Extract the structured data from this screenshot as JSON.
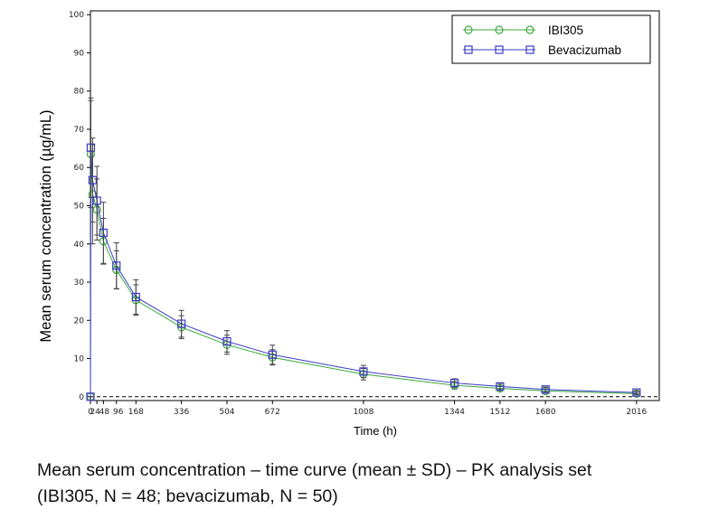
{
  "chart_data": {
    "type": "line",
    "xlabel": "Time (h)",
    "ylabel": "Mean serum concentration (µg/mL)",
    "xlim": [
      0,
      2100
    ],
    "ylim": [
      -1,
      101
    ],
    "x_ticks": [
      0,
      24,
      48,
      96,
      168,
      336,
      504,
      672,
      1008,
      1344,
      1512,
      1680,
      2016
    ],
    "x_tick_labels": [
      "0",
      "24",
      "48",
      "96",
      "168",
      "336",
      "504",
      "672",
      "1008",
      "1344",
      "1512",
      "1680",
      "2016"
    ],
    "y_ticks": [
      0,
      10,
      20,
      30,
      40,
      50,
      60,
      70,
      80,
      90,
      100
    ],
    "y_tick_labels": [
      "0",
      "10",
      "20",
      "30",
      "40",
      "50",
      "60",
      "70",
      "80",
      "90",
      "100"
    ],
    "reference_line_y": 0,
    "legend_position": "top-right",
    "series": [
      {
        "name": "IBI305",
        "color": "#3aa83a",
        "marker": "circle",
        "x": [
          0,
          1.5,
          8,
          24,
          48,
          96,
          168,
          336,
          504,
          672,
          1008,
          1344,
          1512,
          1680,
          2016
        ],
        "y": [
          0,
          63.5,
          53,
          49,
          40.7,
          33.2,
          25.3,
          18.2,
          13.6,
          10.3,
          5.9,
          3.0,
          2.2,
          1.5,
          0.8
        ],
        "sd": [
          0,
          14,
          13,
          8,
          6,
          5,
          4,
          3,
          2.5,
          2,
          1.5,
          1,
          0.8,
          0.5,
          0.3
        ]
      },
      {
        "name": "Bevacizumab",
        "color": "#3a3ac8",
        "marker": "square",
        "x": [
          0,
          1.5,
          8,
          24,
          48,
          96,
          168,
          336,
          504,
          672,
          1008,
          1344,
          1512,
          1680,
          2016
        ],
        "y": [
          0,
          65.2,
          56.7,
          51.3,
          42.9,
          34.3,
          26.1,
          19.1,
          14.5,
          11.0,
          6.6,
          3.6,
          2.7,
          1.9,
          1.1
        ],
        "sd": [
          0,
          13,
          11,
          9,
          8,
          6,
          4.5,
          3.5,
          2.8,
          2.5,
          1.6,
          1.1,
          0.8,
          0.6,
          0.4
        ]
      }
    ]
  },
  "caption": {
    "line1": "Mean serum concentration – time curve (mean ± SD) – PK analysis set",
    "line2": "(IBI305, N = 48; bevacizumab, N = 50)"
  }
}
